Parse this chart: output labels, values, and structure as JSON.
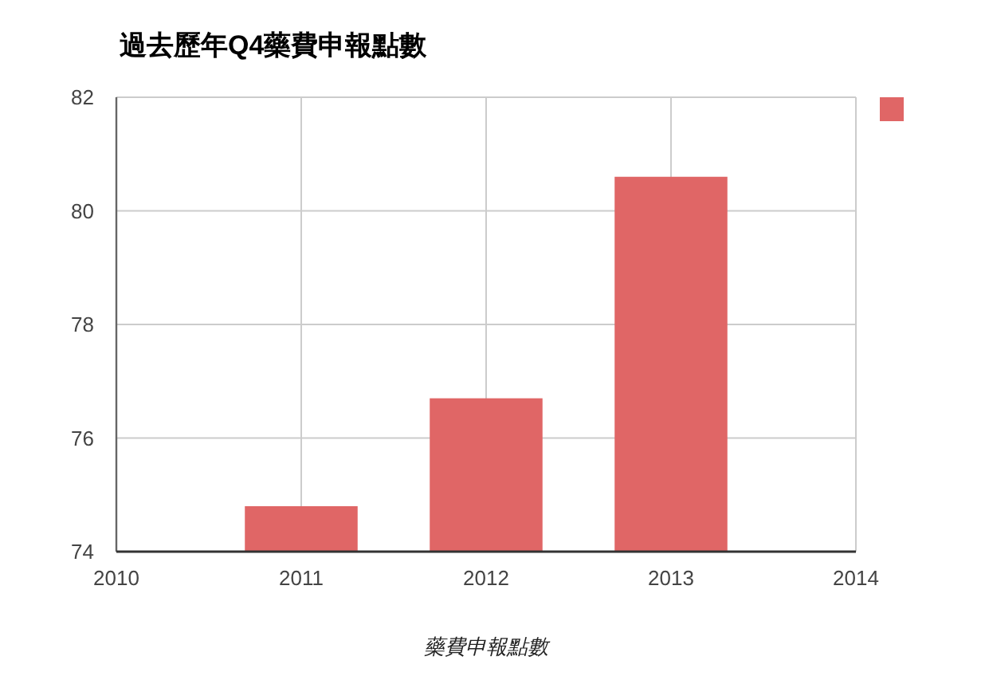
{
  "chart_data": {
    "type": "bar",
    "title": "過去歷年Q4藥費申報點數",
    "xlabel": "藥費申報點數",
    "x": [
      2011,
      2012,
      2013
    ],
    "series": [
      {
        "color": "#e06666",
        "values": [
          74.8,
          76.7,
          80.6
        ]
      }
    ],
    "xlim": [
      2010,
      2014
    ],
    "xticks": [
      2010,
      2011,
      2012,
      2013,
      2014
    ],
    "ylim": [
      74,
      82
    ],
    "yticks": [
      74,
      76,
      78,
      80,
      82
    ],
    "grid": true
  }
}
